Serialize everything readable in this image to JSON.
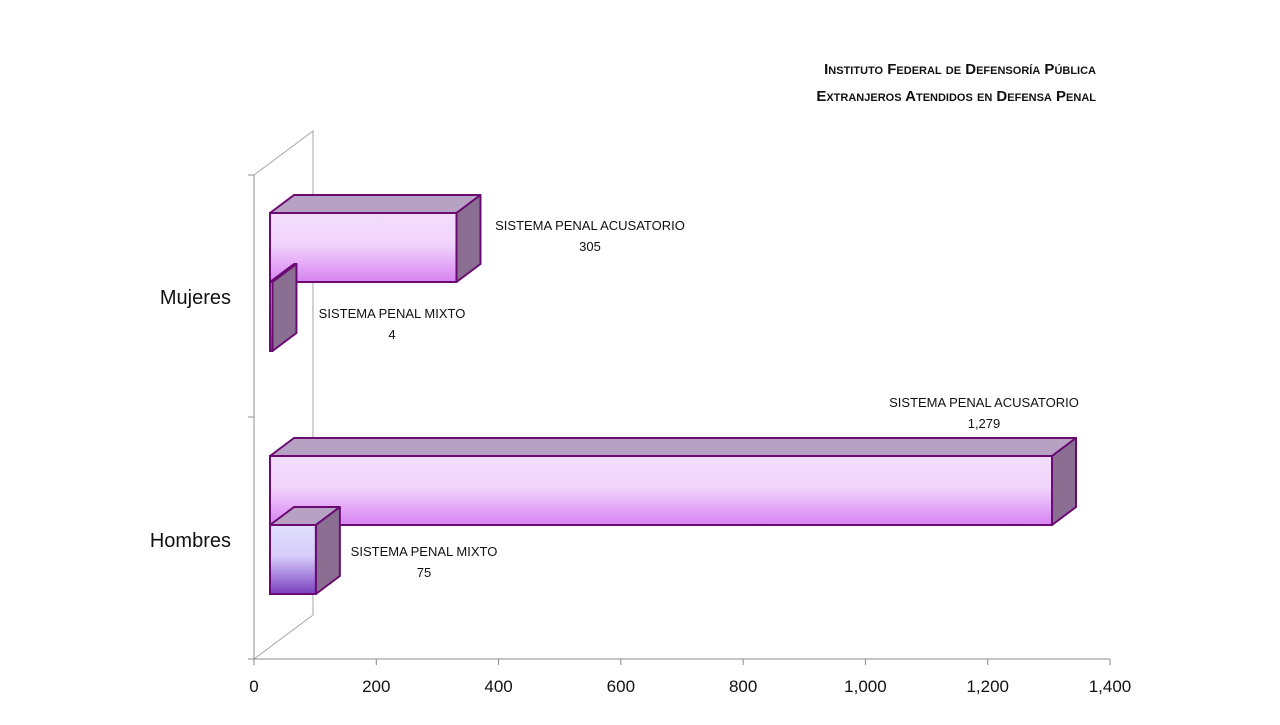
{
  "title_lines": [
    "Instituto Federal de Defensoría Pública",
    "Extranjeros  Atendidos en Defensa Penal"
  ],
  "chart_data": {
    "type": "bar",
    "orientation": "horizontal",
    "style": "3d",
    "categories": [
      "Mujeres",
      "Hombres"
    ],
    "series": [
      {
        "name": "SISTEMA PENAL ACUSATORIO",
        "values": [
          305,
          1279
        ],
        "value_labels": [
          "305",
          "1,279"
        ]
      },
      {
        "name": "SISTEMA PENAL MIXTO",
        "values": [
          4,
          75
        ],
        "value_labels": [
          "4",
          "75"
        ]
      }
    ],
    "x_ticks": [
      "0",
      "200",
      "400",
      "600",
      "800",
      "1,000",
      "1,200",
      "1,400"
    ],
    "xlim": [
      0,
      1400
    ],
    "grid": false,
    "legend": "none",
    "colors": {
      "acusatorio_face": "#e8aef8",
      "mixto_face": "#dcd2fb",
      "edge": "#6a0a72",
      "side": "#8a6f93",
      "top": "#b8a2c3"
    }
  }
}
